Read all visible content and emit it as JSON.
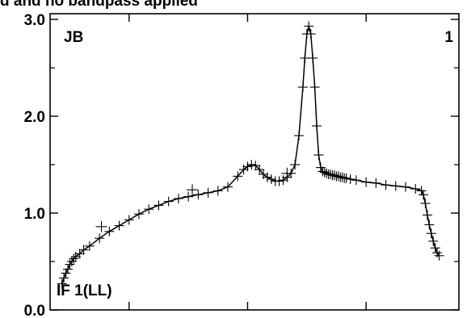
{
  "chart_data": {
    "type": "line",
    "title": "d and no bandpass applied",
    "xlabel": "",
    "ylabel": "",
    "ylim": [
      0.0,
      3.0
    ],
    "y_ticks": [
      "0.0",
      "1.0",
      "2.0",
      "3.0"
    ],
    "y_tick_values": [
      0.0,
      1.0,
      2.0,
      3.0
    ],
    "grid": false,
    "source_label": "JB",
    "panel_number": "1",
    "if_label": "IF 1(LL)",
    "color": "#000000",
    "series": [
      {
        "x": [
          6,
          7,
          8,
          9,
          10,
          11,
          12,
          13,
          15,
          17,
          20,
          25,
          30,
          35,
          40,
          45,
          50,
          55,
          60,
          65,
          70,
          75,
          80,
          85,
          90,
          95,
          98,
          100,
          102,
          104,
          106,
          108,
          110,
          112,
          114,
          116,
          118,
          120,
          122,
          124,
          126,
          128,
          129,
          130,
          131,
          132,
          133,
          134,
          135,
          136,
          137,
          138,
          139,
          140,
          141,
          142,
          143,
          144,
          145,
          146,
          147,
          148,
          149,
          150,
          152,
          155,
          160,
          165,
          170,
          175,
          180,
          185,
          188,
          189,
          190,
          191,
          192,
          193,
          194,
          195,
          196,
          197
        ],
        "values": [
          0.27,
          0.33,
          0.38,
          0.42,
          0.47,
          0.5,
          0.53,
          0.55,
          0.58,
          0.62,
          0.66,
          0.74,
          0.81,
          0.87,
          0.93,
          0.99,
          1.04,
          1.08,
          1.12,
          1.15,
          1.17,
          1.19,
          1.21,
          1.23,
          1.27,
          1.38,
          1.45,
          1.48,
          1.5,
          1.49,
          1.45,
          1.4,
          1.37,
          1.35,
          1.33,
          1.33,
          1.34,
          1.37,
          1.41,
          1.5,
          1.8,
          2.3,
          2.6,
          2.85,
          2.93,
          2.85,
          2.6,
          2.3,
          1.9,
          1.6,
          1.47,
          1.43,
          1.42,
          1.41,
          1.4,
          1.4,
          1.39,
          1.39,
          1.38,
          1.38,
          1.37,
          1.37,
          1.36,
          1.36,
          1.35,
          1.34,
          1.32,
          1.31,
          1.29,
          1.28,
          1.27,
          1.25,
          1.23,
          1.19,
          1.1,
          0.98,
          0.88,
          0.79,
          0.71,
          0.64,
          0.59,
          0.56
        ]
      }
    ],
    "scatter_outliers": {
      "x": [
        26,
        72,
        120
      ],
      "values": [
        0.86,
        1.24,
        1.41
      ]
    },
    "xlim": [
      0,
      207
    ]
  }
}
